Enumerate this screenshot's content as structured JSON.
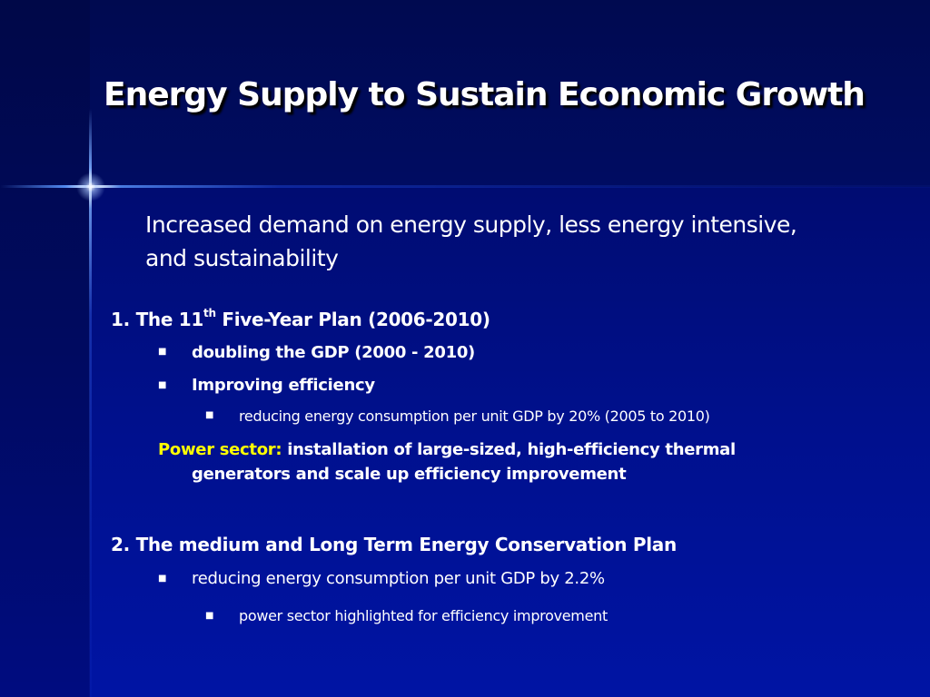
{
  "slide": {
    "title": "Energy Supply to Sustain Economic Growth",
    "subtitle_line1": "Increased demand on energy supply, less energy intensive,",
    "subtitle_line2": "and sustainability"
  },
  "section1": {
    "heading_prefix": "1. The 11",
    "heading_sup": "th",
    "heading_suffix": " Five-Year Plan (2006-2010)",
    "bullet1": "doubling the GDP (2000 - 2010)",
    "bullet2": "Improving efficiency",
    "sub_bullet1": "reducing energy consumption per unit GDP by 20% (2005 to 2010)",
    "power_label": "Power sector:",
    "power_text_line1": " installation of large-sized, high-efficiency thermal",
    "power_text_line2": "generators and scale up efficiency improvement"
  },
  "section2": {
    "heading": "2. The medium and Long Term Energy Conservation Plan",
    "bullet1": "reducing energy consumption per unit GDP by 2.2%",
    "sub_bullet1": "power sector highlighted for efficiency improvement"
  },
  "colors": {
    "background": "#000c74",
    "text": "#ffffff",
    "highlight": "#ffff00"
  },
  "icons": {
    "bullet": "square-bullet"
  }
}
